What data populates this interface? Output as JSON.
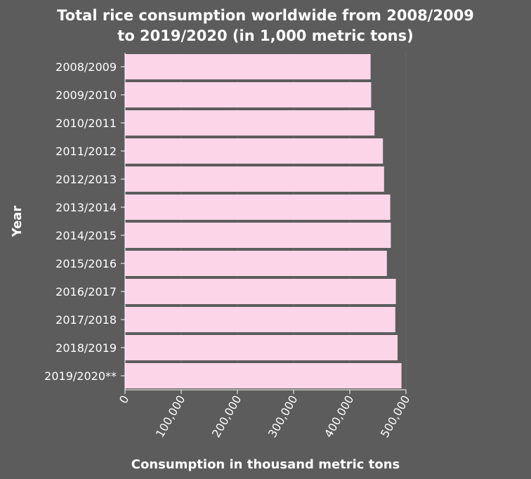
{
  "colors": {
    "background": "#5c5c5c",
    "bar_fill": "#fcd6e8",
    "gridline": "#6a6a6a",
    "text": "#ffffff"
  },
  "chart_data": {
    "type": "bar",
    "orientation": "horizontal",
    "title_lines": [
      "Total rice consumption worldwide from 2008/2009",
      "to 2019/2020 (in 1,000 metric tons)"
    ],
    "xlabel": "Consumption in thousand metric tons",
    "ylabel": "Year",
    "categories": [
      "2008/2009",
      "2009/2010",
      "2010/2011",
      "2011/2012",
      "2012/2013",
      "2013/2014",
      "2014/2015",
      "2015/2016",
      "2016/2017",
      "2017/2018",
      "2018/2019",
      "2019/2020**"
    ],
    "values": [
      437000,
      438000,
      444000,
      459000,
      461000,
      472000,
      473000,
      466000,
      482000,
      481000,
      485000,
      492000
    ],
    "xlim": [
      0,
      500000
    ],
    "xticks": [
      0,
      100000,
      200000,
      300000,
      400000,
      500000
    ],
    "xtick_labels": [
      "0",
      "100,000",
      "200,000",
      "300,000",
      "400,000",
      "500,000"
    ],
    "grid": true
  }
}
